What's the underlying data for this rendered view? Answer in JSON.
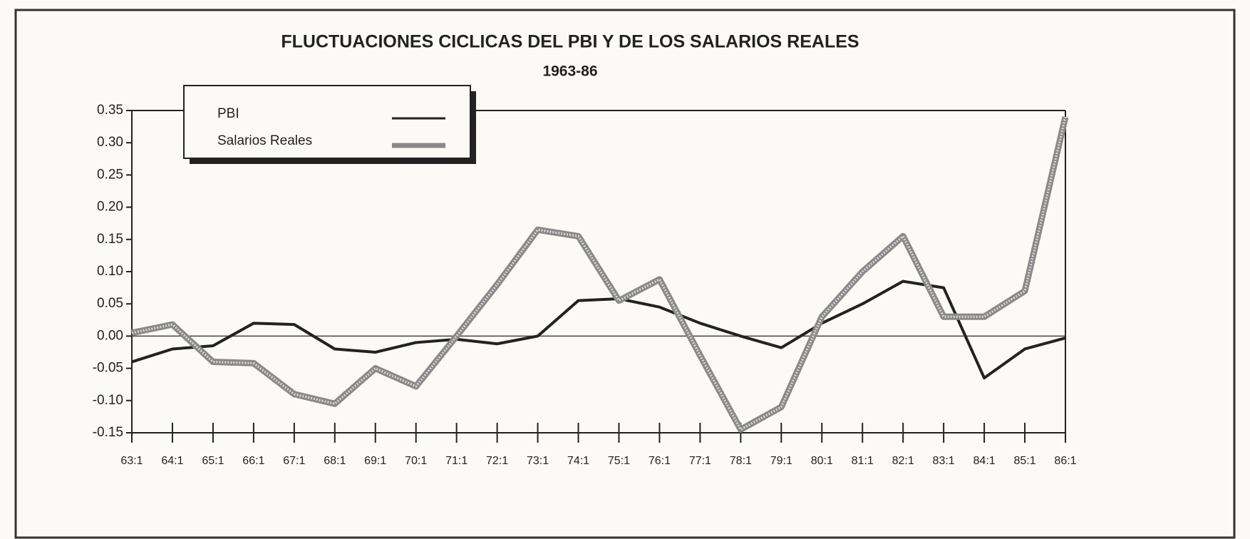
{
  "chart_data": {
    "type": "line",
    "title": "FLUCTUACIONES CICLICAS DEL PBI Y DE LOS SALARIOS REALES",
    "subtitle": "1963-86",
    "categories": [
      "63:1",
      "64:1",
      "65:1",
      "66:1",
      "67:1",
      "68:1",
      "69:1",
      "70:1",
      "71:1",
      "72:1",
      "73:1",
      "74:1",
      "75:1",
      "76:1",
      "77:1",
      "78:1",
      "79:1",
      "80:1",
      "81:1",
      "82:1",
      "83:1",
      "84:1",
      "85:1",
      "86:1"
    ],
    "series": [
      {
        "name": "PBI",
        "color": "#222222",
        "values": [
          -0.04,
          -0.02,
          -0.015,
          0.02,
          0.018,
          -0.02,
          -0.025,
          -0.01,
          -0.005,
          -0.012,
          0.0,
          0.055,
          0.058,
          0.045,
          0.02,
          0.0,
          -0.018,
          0.02,
          0.05,
          0.085,
          0.075,
          -0.065,
          -0.02,
          -0.003
        ]
      },
      {
        "name": "Salarios Reales",
        "color": "#8a8a8a",
        "values": [
          0.005,
          0.018,
          -0.04,
          -0.042,
          -0.09,
          -0.105,
          -0.05,
          -0.078,
          0.0,
          0.08,
          0.165,
          0.155,
          0.055,
          0.088,
          -0.03,
          -0.145,
          -0.11,
          0.03,
          0.1,
          0.155,
          0.03,
          0.03,
          0.07,
          0.34
        ]
      }
    ],
    "ylim": [
      -0.15,
      0.35
    ],
    "yticks": [
      {
        "value": -0.15,
        "label": "-0.15"
      },
      {
        "value": -0.1,
        "label": "-0.10"
      },
      {
        "value": -0.05,
        "label": "-0.05"
      },
      {
        "value": 0,
        "label": "0.00"
      },
      {
        "value": 0.05,
        "label": "0.05"
      },
      {
        "value": 0.1,
        "label": "0.10"
      },
      {
        "value": 0.15,
        "label": "0.15"
      },
      {
        "value": 0.2,
        "label": "0.20"
      },
      {
        "value": 0.25,
        "label": "0.25"
      },
      {
        "value": 0.3,
        "label": "0.30"
      },
      {
        "value": 0.35,
        "label": "0.35"
      }
    ],
    "legend": "top-left"
  }
}
